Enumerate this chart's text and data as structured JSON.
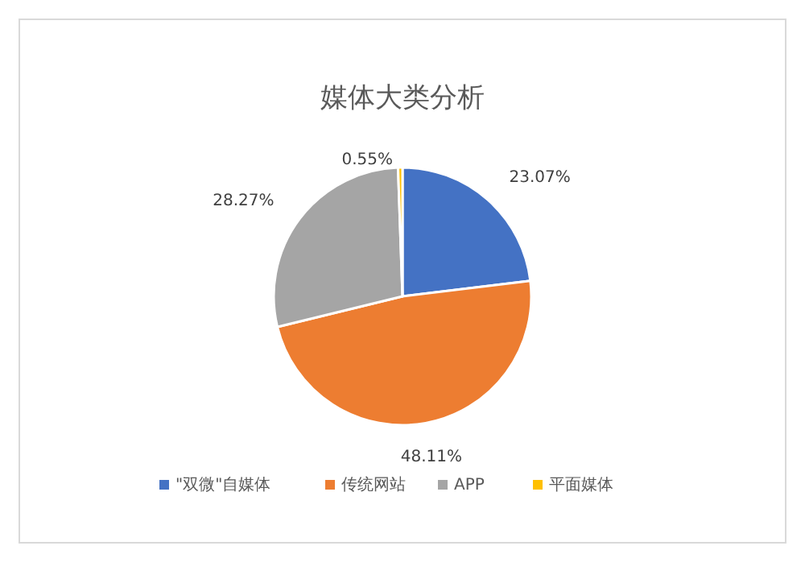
{
  "chart_data": {
    "type": "pie",
    "title": "媒体大类分析",
    "categories": [
      "\"双微\"自媒体",
      "传统网站",
      "APP",
      "平面媒体"
    ],
    "values": [
      23.07,
      48.11,
      28.27,
      0.55
    ],
    "colors": [
      "#4472c4",
      "#ed7d31",
      "#a5a5a5",
      "#ffc000"
    ],
    "value_labels": [
      "23.07%",
      "48.11%",
      "28.27%",
      "0.55%"
    ],
    "legend": "bottom"
  }
}
